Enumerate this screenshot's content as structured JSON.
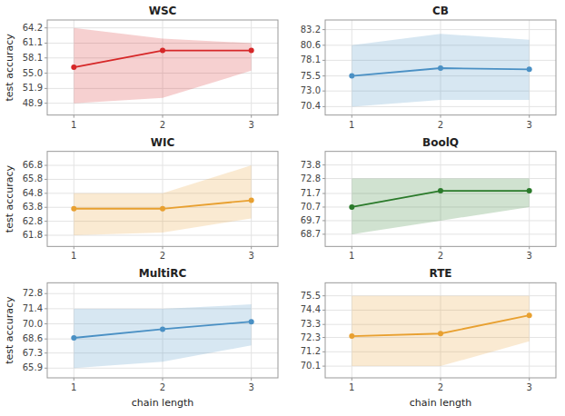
{
  "chart_data": [
    {
      "type": "line",
      "title": "WSC",
      "ylabel": "test accuracy",
      "x": [
        1,
        2,
        3
      ],
      "series": [
        {
          "color": "#d62728",
          "marker": "circle",
          "values": [
            56.2,
            59.6,
            59.6
          ],
          "upper": [
            64.2,
            62.0,
            61.1
          ],
          "lower": [
            48.9,
            50.0,
            55.5
          ]
        }
      ],
      "xlim": [
        0.7,
        3.3
      ],
      "xticks": [
        1,
        2,
        3
      ],
      "ylim": [
        46.5,
        65.8
      ],
      "yticks": [
        48.9,
        51.9,
        {
          "value": 55.0,
          "label": "55.0"
        },
        58.1,
        61.1,
        64.2
      ],
      "grid": true
    },
    {
      "type": "line",
      "title": "CB",
      "x": [
        1,
        2,
        3
      ],
      "series": [
        {
          "color": "#4a90c4",
          "marker": "circle",
          "values": [
            75.5,
            76.8,
            76.6
          ],
          "upper": [
            80.6,
            82.5,
            81.5
          ],
          "lower": [
            70.4,
            71.5,
            71.5
          ]
        }
      ],
      "xlim": [
        0.7,
        3.3
      ],
      "xticks": [
        1,
        2,
        3
      ],
      "ylim": [
        69.0,
        84.8
      ],
      "yticks": [
        70.4,
        {
          "value": 73.0,
          "label": "73.0"
        },
        75.5,
        78.1,
        80.6,
        83.2
      ],
      "grid": true
    },
    {
      "type": "line",
      "title": "WIC",
      "ylabel": "test accuracy",
      "x": [
        1,
        2,
        3
      ],
      "series": [
        {
          "color": "#e8a030",
          "marker": "circle",
          "values": [
            63.7,
            63.7,
            64.3
          ],
          "upper": [
            64.8,
            64.8,
            66.8
          ],
          "lower": [
            61.8,
            62.0,
            63.0
          ]
        }
      ],
      "xlim": [
        0.7,
        3.3
      ],
      "xticks": [
        1,
        2,
        3
      ],
      "ylim": [
        61.0,
        67.8
      ],
      "yticks": [
        61.8,
        62.8,
        63.8,
        64.8,
        65.8,
        66.8
      ],
      "grid": true
    },
    {
      "type": "line",
      "title": "BoolQ",
      "x": [
        1,
        2,
        3
      ],
      "series": [
        {
          "color": "#2a7a2a",
          "marker": "circle",
          "values": [
            70.7,
            71.9,
            71.9
          ],
          "upper": [
            72.8,
            72.8,
            72.8
          ],
          "lower": [
            68.7,
            69.7,
            70.7
          ]
        }
      ],
      "xlim": [
        0.7,
        3.3
      ],
      "xticks": [
        1,
        2,
        3
      ],
      "ylim": [
        67.8,
        74.8
      ],
      "yticks": [
        68.7,
        69.7,
        70.7,
        71.7,
        72.8,
        73.8
      ],
      "grid": true
    },
    {
      "type": "line",
      "title": "MultiRC",
      "ylabel": "test accuracy",
      "xlabel": "chain length",
      "x": [
        1,
        2,
        3
      ],
      "series": [
        {
          "color": "#4a90c4",
          "marker": "circle",
          "values": [
            68.7,
            69.5,
            70.2
          ],
          "upper": [
            71.4,
            71.4,
            71.8
          ],
          "lower": [
            65.9,
            66.5,
            68.0
          ]
        }
      ],
      "xlim": [
        0.7,
        3.3
      ],
      "xticks": [
        1,
        2,
        3
      ],
      "ylim": [
        65.0,
        73.8
      ],
      "yticks": [
        65.9,
        67.3,
        68.6,
        {
          "value": 70.0,
          "label": "70.0"
        },
        71.4,
        72.8
      ],
      "grid": true
    },
    {
      "type": "line",
      "title": "RTE",
      "xlabel": "chain length",
      "x": [
        1,
        2,
        3
      ],
      "series": [
        {
          "color": "#e8a030",
          "marker": "circle",
          "values": [
            72.4,
            72.6,
            74.0
          ],
          "upper": [
            75.5,
            75.5,
            75.5
          ],
          "lower": [
            70.1,
            70.1,
            72.0
          ]
        }
      ],
      "xlim": [
        0.7,
        3.3
      ],
      "xticks": [
        1,
        2,
        3
      ],
      "ylim": [
        69.2,
        76.5
      ],
      "yticks": [
        70.1,
        71.2,
        72.3,
        73.3,
        74.4,
        75.5
      ],
      "grid": true
    }
  ]
}
